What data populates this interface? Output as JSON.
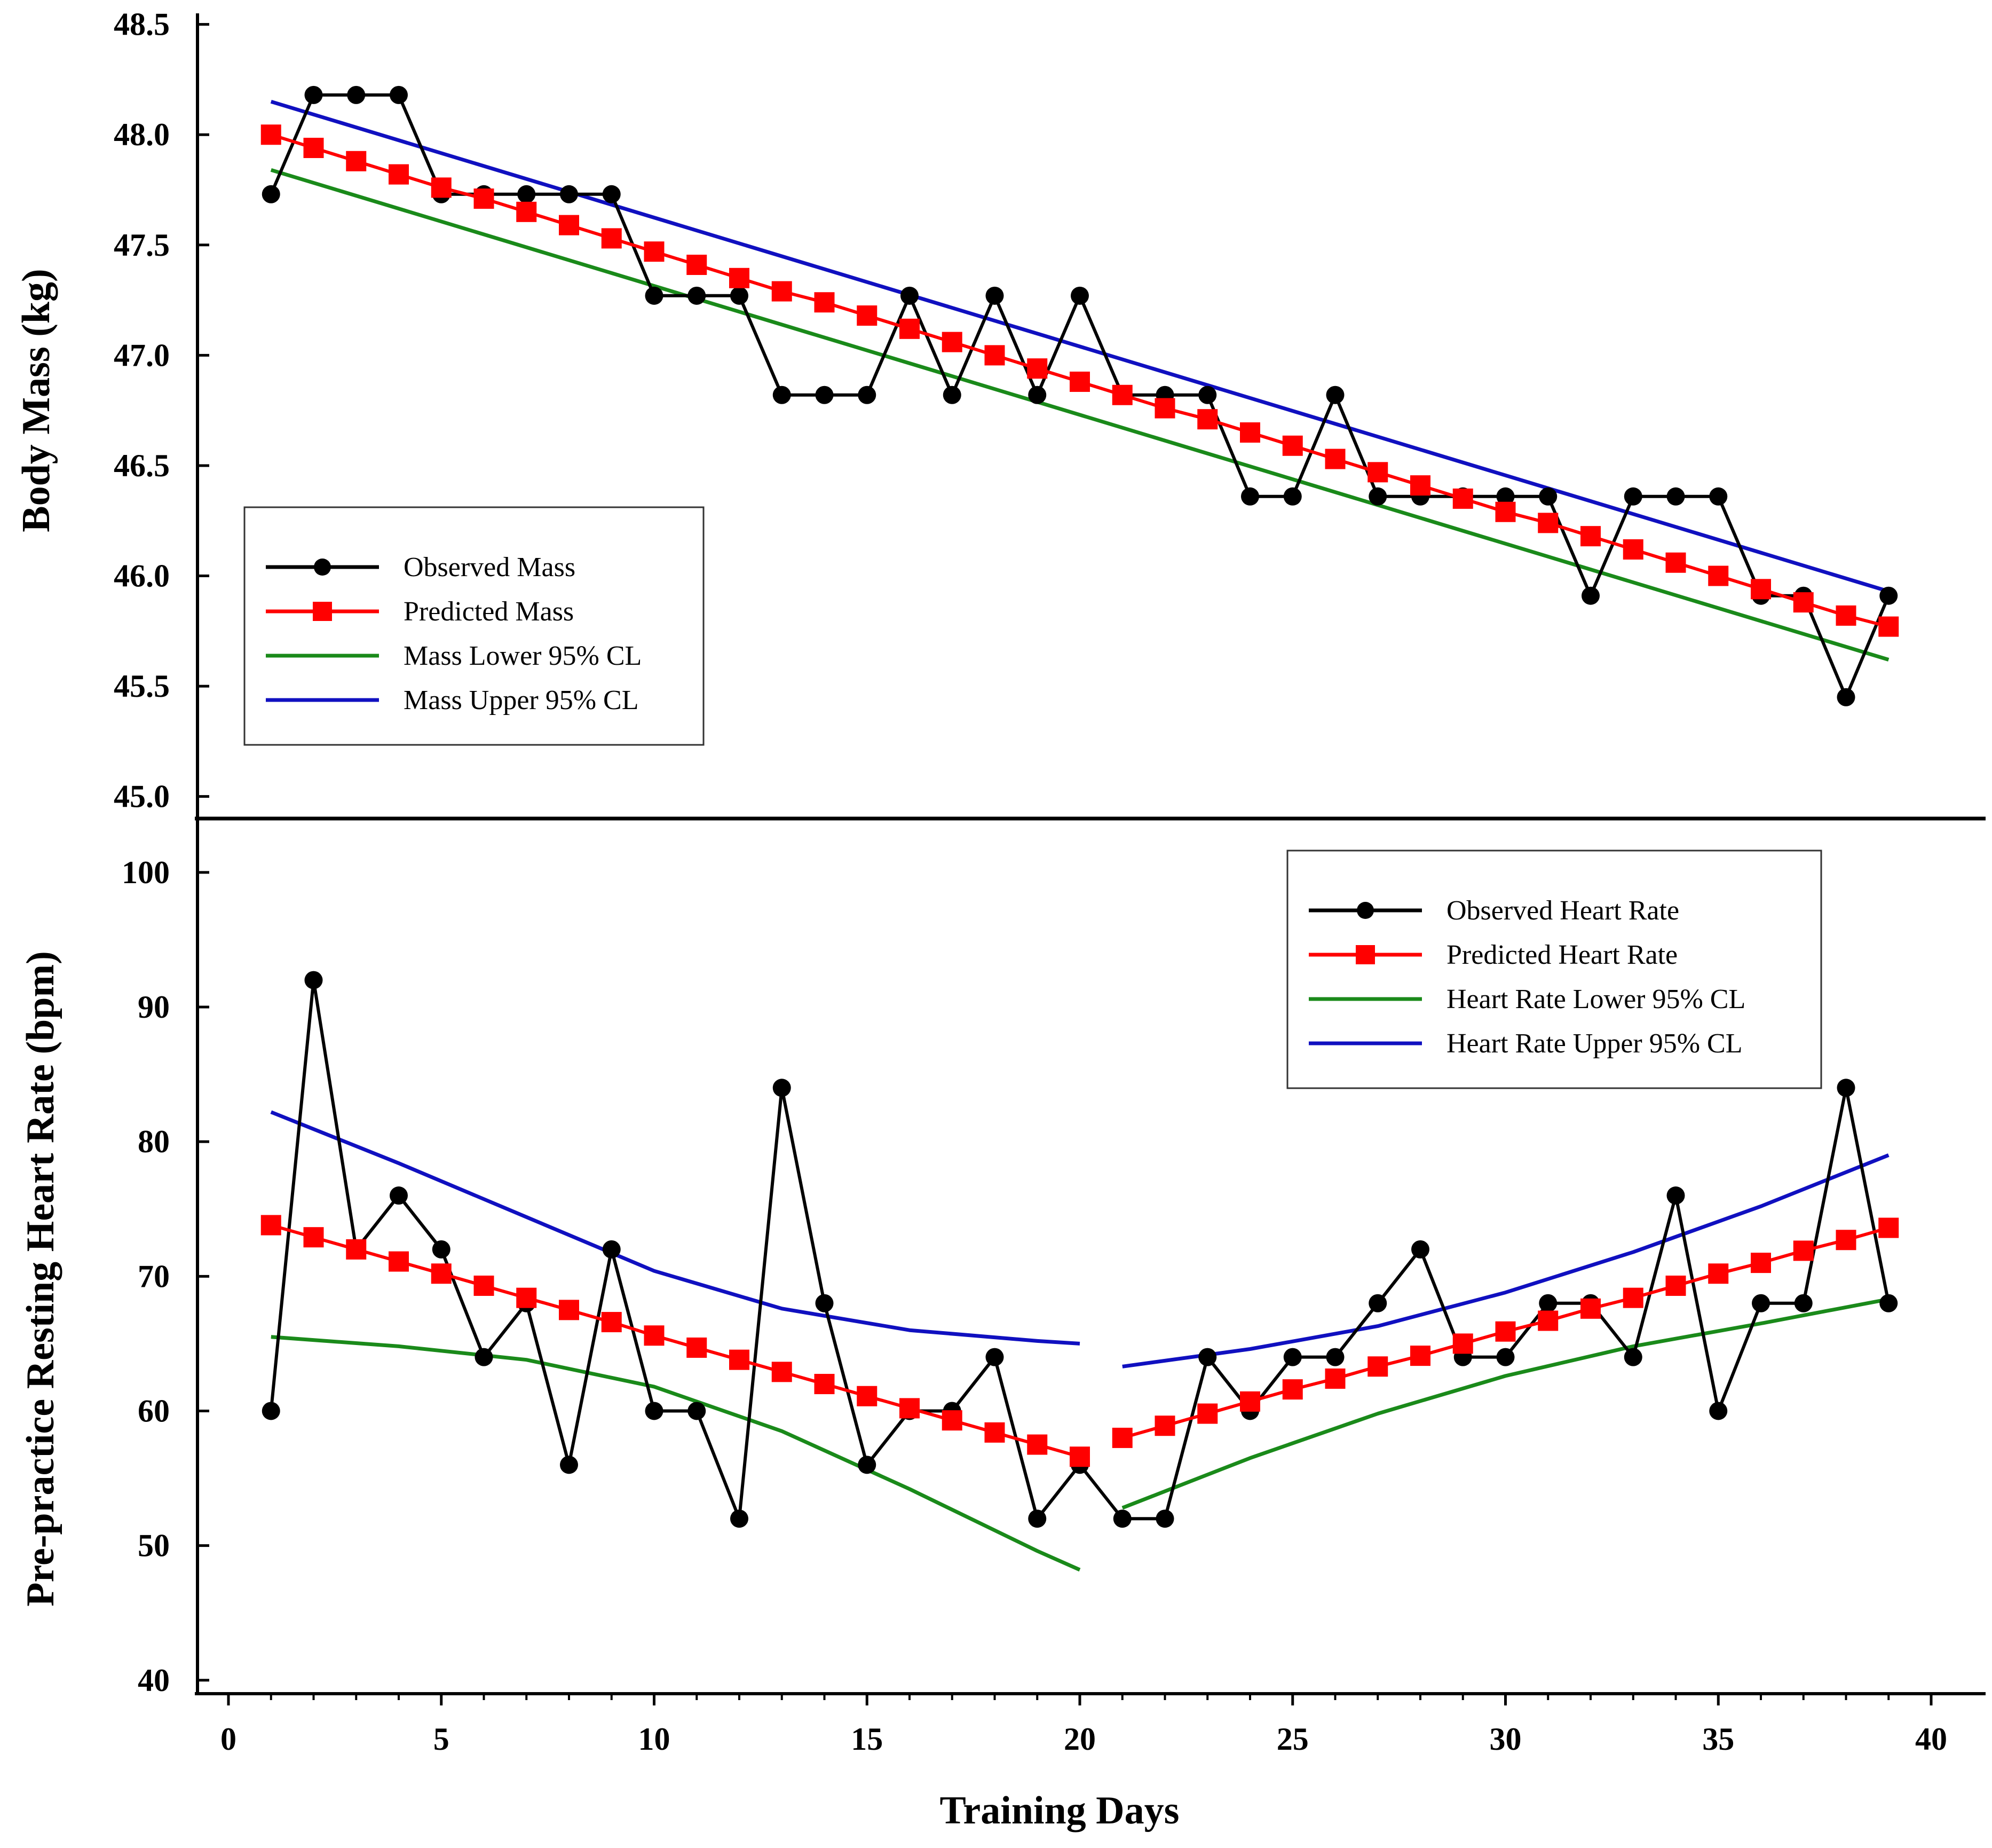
{
  "chart_data": [
    {
      "type": "line",
      "panel": "top",
      "ylabel": "Body Mass (kg)",
      "ylim": [
        44.9,
        48.55
      ],
      "yticks": [
        "45.0",
        "45.5",
        "46.0",
        "46.5",
        "47.0",
        "47.5",
        "48.0",
        "48.5"
      ],
      "xlim": [
        0,
        40
      ],
      "legend_position": "middle-left",
      "series": [
        {
          "name": "Observed Mass",
          "color": "#000000",
          "marker": "circle",
          "x": [
            1,
            2,
            3,
            4,
            5,
            6,
            7,
            8,
            9,
            10,
            11,
            12,
            13,
            14,
            15,
            16,
            17,
            18,
            19,
            20,
            21,
            22,
            23,
            24,
            25,
            26,
            27,
            28,
            29,
            30,
            31,
            32,
            33,
            34,
            35,
            36,
            37,
            38,
            39
          ],
          "values": [
            47.73,
            48.18,
            48.18,
            48.18,
            47.73,
            47.73,
            47.73,
            47.73,
            47.73,
            47.27,
            47.27,
            47.27,
            46.82,
            46.82,
            46.82,
            47.27,
            46.82,
            47.27,
            46.82,
            47.27,
            46.82,
            46.82,
            46.82,
            46.36,
            46.36,
            46.82,
            46.36,
            46.36,
            46.36,
            46.36,
            46.36,
            45.91,
            46.36,
            46.36,
            46.36,
            45.91,
            45.91,
            45.45,
            45.91
          ]
        },
        {
          "name": "Predicted Mass",
          "color": "#ff0000",
          "marker": "square",
          "x": [
            1,
            2,
            3,
            4,
            5,
            6,
            7,
            8,
            9,
            10,
            11,
            12,
            13,
            14,
            15,
            16,
            17,
            18,
            19,
            20,
            21,
            22,
            23,
            24,
            25,
            26,
            27,
            28,
            29,
            30,
            31,
            32,
            33,
            34,
            35,
            36,
            37,
            38,
            39
          ],
          "values": [
            48.0,
            47.94,
            47.88,
            47.82,
            47.76,
            47.71,
            47.65,
            47.59,
            47.53,
            47.47,
            47.41,
            47.35,
            47.29,
            47.24,
            47.18,
            47.12,
            47.06,
            47.0,
            46.94,
            46.88,
            46.82,
            46.76,
            46.71,
            46.65,
            46.59,
            46.53,
            46.47,
            46.41,
            46.35,
            46.29,
            46.24,
            46.18,
            46.12,
            46.06,
            46.0,
            45.94,
            45.88,
            45.82,
            45.77
          ]
        },
        {
          "name": "Mass Lower 95% CL",
          "color": "#1a8a1a",
          "marker": "none",
          "x": [
            1,
            39
          ],
          "values": [
            47.84,
            45.62
          ]
        },
        {
          "name": "Mass Upper 95% CL",
          "color": "#1010c0",
          "marker": "none",
          "x": [
            1,
            39
          ],
          "values": [
            48.15,
            45.93
          ]
        }
      ]
    },
    {
      "type": "line",
      "panel": "bottom",
      "ylabel": "Pre-practice Resting Heart Rate (bpm)",
      "xlabel": "Training Days",
      "ylim": [
        39,
        104
      ],
      "yticks": [
        "40",
        "50",
        "60",
        "70",
        "80",
        "90",
        "100"
      ],
      "xlim": [
        0,
        40
      ],
      "xticks": [
        "0",
        "5",
        "10",
        "15",
        "20",
        "25",
        "30",
        "35",
        "40"
      ],
      "legend_position": "top-right",
      "series": [
        {
          "name": "Observed Heart Rate",
          "color": "#000000",
          "marker": "circle",
          "x": [
            1,
            2,
            3,
            4,
            5,
            6,
            7,
            8,
            9,
            10,
            11,
            12,
            13,
            14,
            15,
            16,
            17,
            18,
            19,
            20,
            21,
            22,
            23,
            24,
            25,
            26,
            27,
            28,
            29,
            30,
            31,
            32,
            33,
            34,
            35,
            36,
            37,
            38,
            39
          ],
          "values": [
            60,
            92,
            72,
            76,
            72,
            64,
            68,
            56,
            72,
            60,
            60,
            52,
            84,
            68,
            56,
            60,
            60,
            64,
            52,
            56,
            52,
            52,
            64,
            60,
            64,
            64,
            68,
            72,
            64,
            64,
            68,
            68,
            64,
            76,
            60,
            68,
            68,
            84,
            68
          ]
        },
        {
          "name": "Predicted Heart Rate",
          "color": "#ff0000",
          "marker": "square",
          "x": [
            1,
            2,
            3,
            4,
            5,
            6,
            7,
            8,
            9,
            10,
            11,
            12,
            13,
            14,
            15,
            16,
            17,
            18,
            19,
            20,
            21,
            22,
            23,
            24,
            25,
            26,
            27,
            28,
            29,
            30,
            31,
            32,
            33,
            34,
            35,
            36,
            37,
            38,
            39
          ],
          "values": [
            73.8,
            72.9,
            72.0,
            71.1,
            70.2,
            69.3,
            68.4,
            67.5,
            66.6,
            65.6,
            64.7,
            63.8,
            62.9,
            62.0,
            61.1,
            60.2,
            59.3,
            58.4,
            57.5,
            56.6,
            58.0,
            58.9,
            59.8,
            60.7,
            61.6,
            62.4,
            63.3,
            64.1,
            65.0,
            65.9,
            66.7,
            67.6,
            68.4,
            69.3,
            70.2,
            71.0,
            71.9,
            72.7,
            73.6
          ]
        },
        {
          "name": "Heart Rate Lower 95% CL",
          "color": "#1a8a1a",
          "marker": "none",
          "x": [
            1,
            4,
            7,
            10,
            13,
            16,
            19,
            20,
            21,
            24,
            27,
            30,
            33,
            36,
            39
          ],
          "values": [
            65.5,
            64.8,
            63.8,
            61.8,
            58.5,
            54.2,
            49.6,
            48.2,
            52.8,
            56.5,
            59.8,
            62.6,
            64.8,
            66.5,
            68.3
          ]
        },
        {
          "name": "Heart Rate Upper 95% CL",
          "color": "#1010c0",
          "marker": "none",
          "x": [
            1,
            4,
            7,
            10,
            13,
            16,
            19,
            20,
            21,
            24,
            27,
            30,
            33,
            36,
            39
          ],
          "values": [
            82.2,
            78.4,
            74.4,
            70.4,
            67.6,
            66.0,
            65.2,
            65.0,
            63.3,
            64.6,
            66.3,
            68.8,
            71.8,
            75.2,
            79.0
          ]
        }
      ]
    }
  ]
}
